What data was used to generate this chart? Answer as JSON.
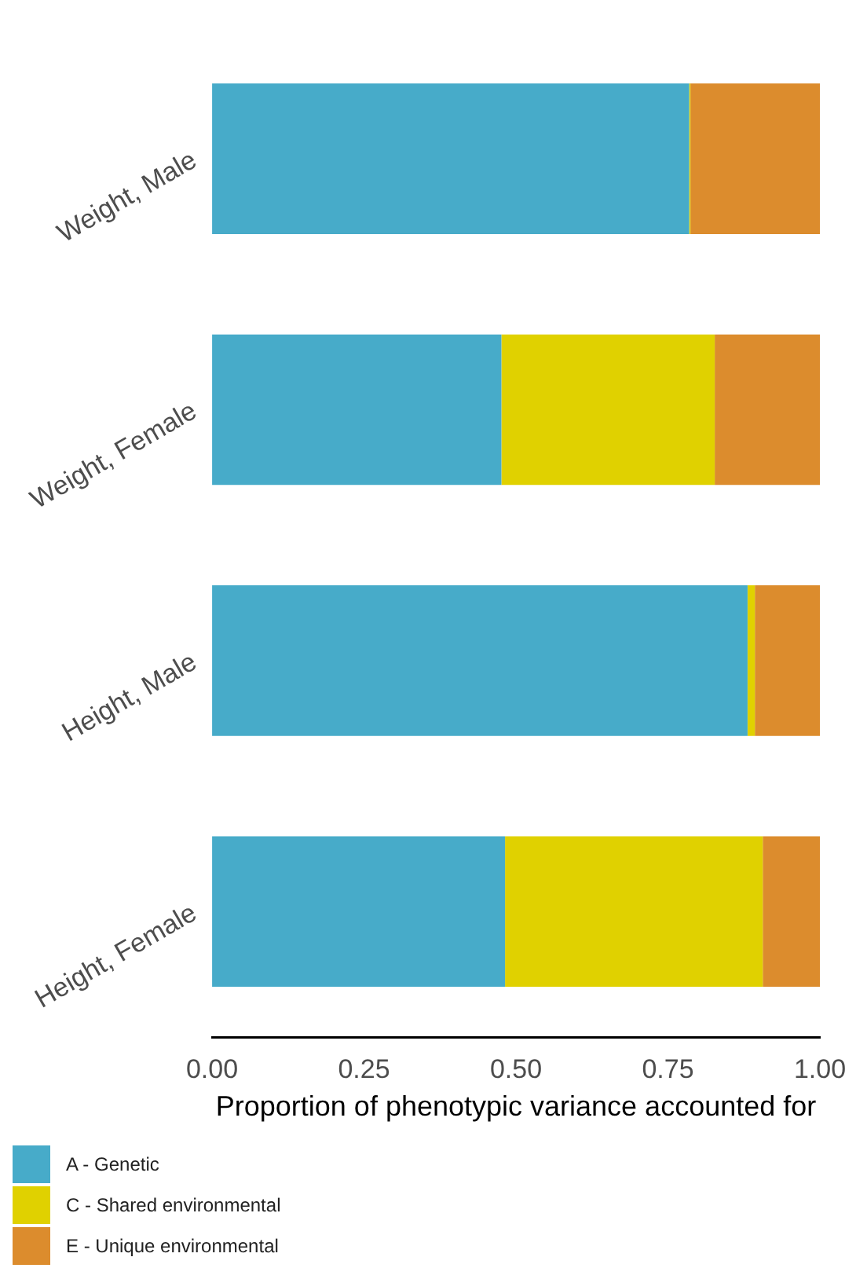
{
  "chart_data": {
    "type": "bar",
    "orientation": "horizontal",
    "stacked": true,
    "categories": [
      "Weight, Male",
      "Weight, Female",
      "Height, Male",
      "Height, Female"
    ],
    "series": [
      {
        "name": "A - Genetic",
        "color": "#47abc9",
        "values": [
          0.785,
          0.476,
          0.881,
          0.482
        ]
      },
      {
        "name": "C - Shared environmental",
        "color": "#e0d100",
        "values": [
          0.002,
          0.351,
          0.012,
          0.424
        ]
      },
      {
        "name": "E - Unique environmental",
        "color": "#dc8c2d",
        "values": [
          0.213,
          0.173,
          0.107,
          0.094
        ]
      }
    ],
    "xlim": [
      0,
      1
    ],
    "xticks": [
      {
        "value": 0,
        "label": "0.00"
      },
      {
        "value": 0.25,
        "label": "0.25"
      },
      {
        "value": 0.5,
        "label": "0.50"
      },
      {
        "value": 0.75,
        "label": "0.75"
      },
      {
        "value": 1,
        "label": "1.00"
      }
    ],
    "xlabel": "Proportion of phenotypic variance accounted for",
    "grid": false,
    "legend": "bottom left"
  }
}
